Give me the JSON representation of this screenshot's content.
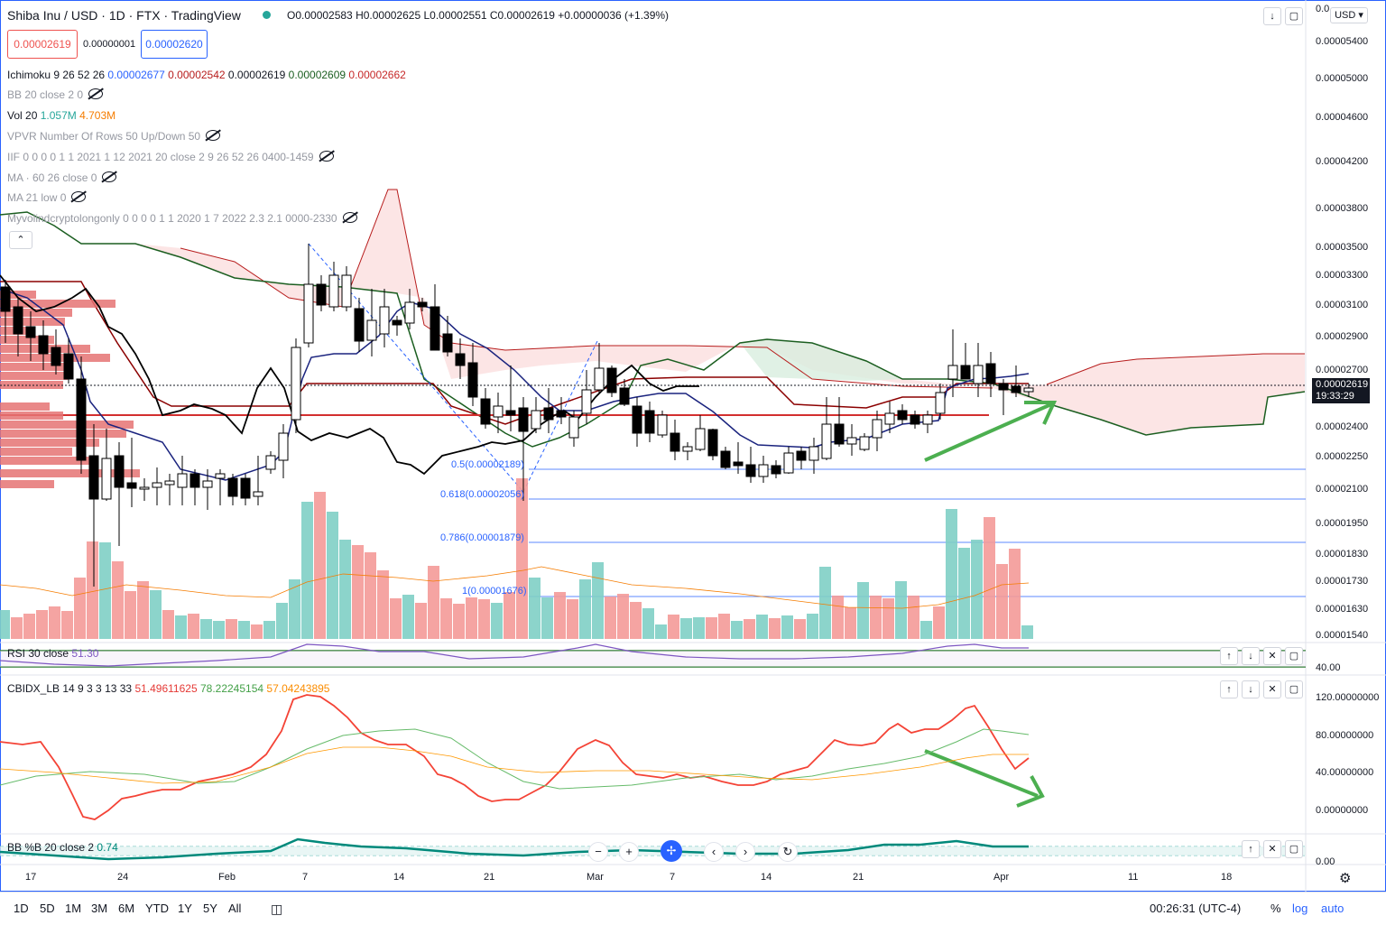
{
  "header": {
    "symbol": "Shiba Inu / USD · 1D · FTX · TradingView",
    "ohlc": "O0.00002583 H0.00002625 L0.00002551 C0.00002619 +0.00000036 (+1.39%)",
    "sell_price": "0.00002619",
    "spread": "0.00000001",
    "buy_price": "0.00002620",
    "currency": "USD"
  },
  "indicators": {
    "ichimoku": {
      "name": "Ichimoku 9 26 52 26",
      "v1": "0.00002677",
      "v2": "0.00002542",
      "v3": "0.00002619",
      "v4": "0.00002609",
      "v5": "0.00002662"
    },
    "bb": "BB 20 close 2 0",
    "vol": {
      "name": "Vol 20",
      "v1": "1.057M",
      "v2": "4.703M"
    },
    "vpvr": "VPVR Number Of Rows 50 Up/Down 50",
    "iif": "IIF 0 0 0 0 1 1 2021 1 12 2021 20 close 2 9 26 52 26 0400-1459",
    "ma60": "MA · 60 26 close 0",
    "ma21": "MA 21 low 0",
    "myvol": "Myvolindcryptolongonly 0 0 0 0 1 1 2020 1 7 2022 2.3 2.1 0000-2330"
  },
  "price_axis": [
    "0.00005400",
    "0.00005000",
    "0.00004600",
    "0.00004200",
    "0.00003800",
    "0.00003500",
    "0.00003300",
    "0.00003100",
    "0.00002900",
    "0.00002700",
    "0.00002400",
    "0.00002250",
    "0.00002100",
    "0.00001950",
    "0.00001830",
    "0.00001730",
    "0.00001630",
    "0.00001540"
  ],
  "price_axis_top_partial": "0.0",
  "current_price": "0.00002619",
  "countdown": "19:33:29",
  "fib_labels": [
    "0.5(0.00002189)",
    "0.618(0.00002056)",
    "0.786(0.00001879)",
    "1(0.00001676)"
  ],
  "rsi": {
    "name": "RSI 30 close",
    "value": "51.30",
    "axis": "40.00"
  },
  "cbidx": {
    "name": "CBIDX_LB 14 9 3 3 13 33",
    "v1": "51.49611625",
    "v2": "78.22245154",
    "v3": "57.04243895",
    "axis": [
      "120.00000000",
      "80.00000000",
      "40.00000000",
      "0.00000000"
    ]
  },
  "bbpct": {
    "name": "BB %B 20 close 2",
    "value": "0.74",
    "axis": "0.00"
  },
  "x_axis": [
    "17",
    "24",
    "Feb",
    "7",
    "14",
    "21",
    "Mar",
    "7",
    "14",
    "21",
    "Apr",
    "11",
    "18"
  ],
  "bottom_bar": {
    "ranges": [
      "1D",
      "5D",
      "1M",
      "3M",
      "6M",
      "YTD",
      "1Y",
      "5Y",
      "All"
    ],
    "time": "00:26:31 (UTC-4)",
    "percent": "%",
    "log": "log",
    "auto": "auto"
  },
  "colors": {
    "up": "#26a69a",
    "down": "#ef5350",
    "cloud": "#f9d5d5",
    "blue": "#1e3ea8",
    "green_arrow": "#4caf50"
  },
  "chart_data": {
    "type": "candlestick",
    "series_ohlc_approx": [
      [
        3.12e-05,
        3.18e-05,
        2.96e-05,
        3e-05
      ],
      [
        3e-05,
        3.04e-05,
        2.86e-05,
        2.88e-05
      ],
      [
        2.88e-05,
        2.92e-05,
        2.78e-05,
        2.82e-05
      ],
      [
        2.82e-05,
        2.87e-05,
        2.7e-05,
        2.74e-05
      ],
      [
        2.74e-05,
        2.78e-05,
        2.6e-05,
        2.62e-05
      ],
      [
        2.62e-05,
        2.65e-05,
        2.1e-05,
        2.18e-05
      ],
      [
        2.18e-05,
        2.26e-05,
        1.75e-05,
        2.05e-05
      ],
      [
        2.05e-05,
        2.32e-05,
        2e-05,
        2.24e-05
      ],
      [
        2.24e-05,
        2.3e-05,
        1.86e-05,
        2.08e-05
      ],
      [
        2.08e-05,
        2.14e-05,
        2.03e-05,
        2.06e-05
      ],
      [
        2.06e-05,
        2.12e-05,
        2.02e-05,
        2.07e-05
      ],
      [
        2.07e-05,
        2.13e-05,
        2.03e-05,
        2.09e-05
      ]
    ]
  }
}
